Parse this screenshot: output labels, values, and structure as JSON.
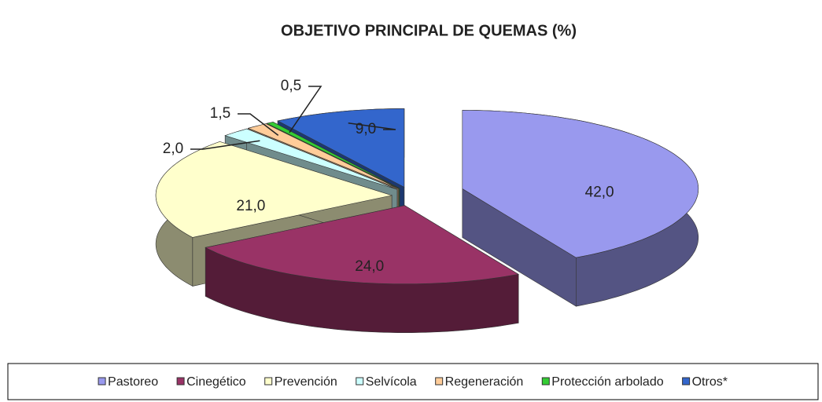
{
  "chart_data": {
    "type": "pie3d",
    "title": "OBJETIVO PRINCIPAL DE QUEMAS (%)",
    "categories": [
      "Pastoreo",
      "Cinegético",
      "Prevención",
      "Selvícola",
      "Regeneración",
      "Protección arbolado",
      "Otros*"
    ],
    "values": [
      42.0,
      24.0,
      21.0,
      2.0,
      1.5,
      0.5,
      9.0
    ],
    "value_labels": [
      "42,0",
      "24,0",
      "21,0",
      "2,0",
      "1,5",
      "0,5",
      "9,0"
    ],
    "colors": [
      "#9999ee",
      "#993366",
      "#ffffcc",
      "#ccffff",
      "#ffcc99",
      "#33cc33",
      "#3366cc"
    ],
    "legend": "bottom"
  }
}
